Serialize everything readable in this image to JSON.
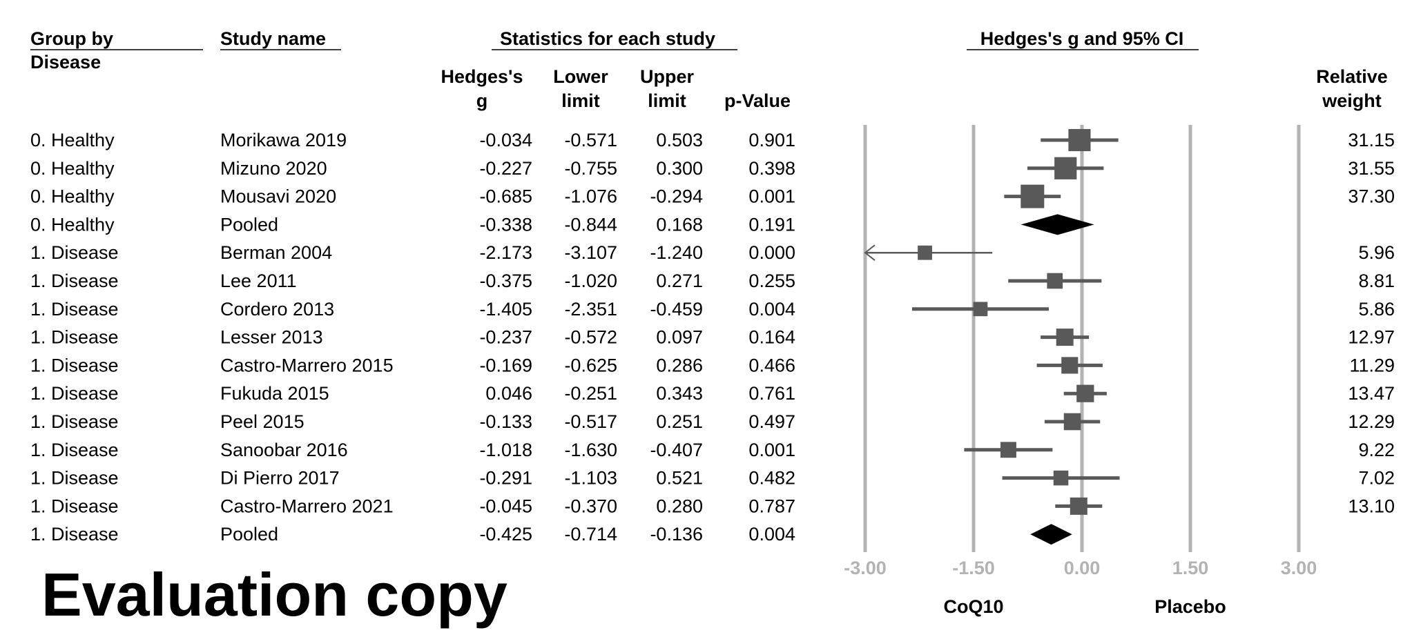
{
  "chart_data": {
    "type": "forest",
    "headers": {
      "group": "Group by",
      "group2": "Disease",
      "study": "Study name",
      "stats": "Statistics for each study",
      "plot": "Hedges's g and 95% CI",
      "g1": "Hedges's",
      "g2": "g",
      "lower1": "Lower",
      "lower2": "limit",
      "upper1": "Upper",
      "upper2": "limit",
      "p": "p-Value",
      "w1": "Relative",
      "w2": "weight"
    },
    "rows": [
      {
        "group": "0. Healthy",
        "study": "Morikawa 2019",
        "g": "-0.034",
        "lower": "-0.571",
        "upper": "0.503",
        "p": "0.901",
        "weight": "31.15",
        "pooled": false
      },
      {
        "group": "0. Healthy",
        "study": "Mizuno 2020",
        "g": "-0.227",
        "lower": "-0.755",
        "upper": "0.300",
        "p": "0.398",
        "weight": "31.55",
        "pooled": false
      },
      {
        "group": "0. Healthy",
        "study": "Mousavi 2020",
        "g": "-0.685",
        "lower": "-1.076",
        "upper": "-0.294",
        "p": "0.001",
        "weight": "37.30",
        "pooled": false
      },
      {
        "group": "0. Healthy",
        "study": "Pooled",
        "g": "-0.338",
        "lower": "-0.844",
        "upper": "0.168",
        "p": "0.191",
        "weight": "",
        "pooled": true
      },
      {
        "group": "1. Disease",
        "study": "Berman 2004",
        "g": "-2.173",
        "lower": "-3.107",
        "upper": "-1.240",
        "p": "0.000",
        "weight": "5.96",
        "pooled": false
      },
      {
        "group": "1. Disease",
        "study": "Lee 2011",
        "g": "-0.375",
        "lower": "-1.020",
        "upper": "0.271",
        "p": "0.255",
        "weight": "8.81",
        "pooled": false
      },
      {
        "group": "1. Disease",
        "study": "Cordero 2013",
        "g": "-1.405",
        "lower": "-2.351",
        "upper": "-0.459",
        "p": "0.004",
        "weight": "5.86",
        "pooled": false
      },
      {
        "group": "1. Disease",
        "study": "Lesser 2013",
        "g": "-0.237",
        "lower": "-0.572",
        "upper": "0.097",
        "p": "0.164",
        "weight": "12.97",
        "pooled": false
      },
      {
        "group": "1. Disease",
        "study": "Castro-Marrero 2015",
        "g": "-0.169",
        "lower": "-0.625",
        "upper": "0.286",
        "p": "0.466",
        "weight": "11.29",
        "pooled": false
      },
      {
        "group": "1. Disease",
        "study": "Fukuda 2015",
        "g": "0.046",
        "lower": "-0.251",
        "upper": "0.343",
        "p": "0.761",
        "weight": "13.47",
        "pooled": false
      },
      {
        "group": "1. Disease",
        "study": "Peel 2015",
        "g": "-0.133",
        "lower": "-0.517",
        "upper": "0.251",
        "p": "0.497",
        "weight": "12.29",
        "pooled": false
      },
      {
        "group": "1. Disease",
        "study": "Sanoobar 2016",
        "g": "-1.018",
        "lower": "-1.630",
        "upper": "-0.407",
        "p": "0.001",
        "weight": "9.22",
        "pooled": false
      },
      {
        "group": "1. Disease",
        "study": "Di Pierro 2017",
        "g": "-0.291",
        "lower": "-1.103",
        "upper": "0.521",
        "p": "0.482",
        "weight": "7.02",
        "pooled": false
      },
      {
        "group": "1. Disease",
        "study": "Castro-Marrero 2021",
        "g": "-0.045",
        "lower": "-0.370",
        "upper": "0.280",
        "p": "0.787",
        "weight": "13.10",
        "pooled": false
      },
      {
        "group": "1. Disease",
        "study": "Pooled",
        "g": "-0.425",
        "lower": "-0.714",
        "upper": "-0.136",
        "p": "0.004",
        "weight": "",
        "pooled": true
      }
    ],
    "xlim": [
      -3,
      3
    ],
    "xticks": [
      "-3.00",
      "-1.50",
      "0.00",
      "1.50",
      "3.00"
    ],
    "xlabel_left": "CoQ10",
    "xlabel_right": "Placebo",
    "colors": {
      "study": "#595959",
      "pooled": "#000000",
      "grid": "#b3b3b3",
      "tick": "#b3b3b3"
    }
  },
  "watermark": "Evaluation copy"
}
